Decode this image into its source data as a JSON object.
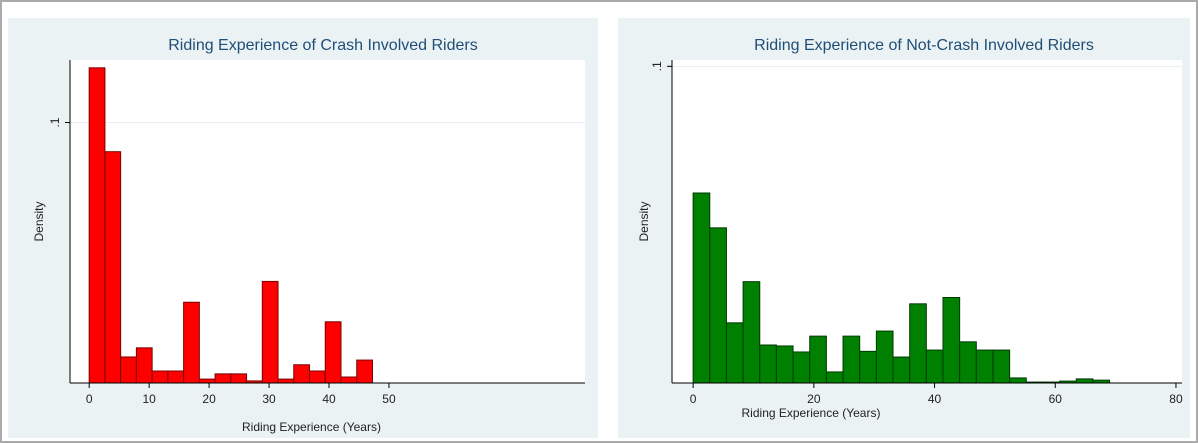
{
  "chart_data": [
    {
      "type": "histogram",
      "title": "Riding Experience of Crash Involved Riders",
      "x_label": "Riding Experience (Years)",
      "y_label": "Density",
      "bins": [
        0,
        2.625,
        5.25,
        7.875,
        10.5,
        13.125,
        15.75,
        18.375,
        21,
        23.625,
        26.25,
        28.875,
        31.5,
        34.125,
        36.75,
        39.375,
        42,
        44.625,
        47.25
      ],
      "values": [
        0.121,
        0.0888,
        0.01,
        0.0135,
        0.0046,
        0.0046,
        0.031,
        0.0015,
        0.0035,
        0.0035,
        0.0008,
        0.039,
        0.0015,
        0.007,
        0.0046,
        0.0235,
        0.0023,
        0.0088
      ],
      "color": "#ff0000",
      "edge_color": "#7a0000",
      "xlim": [
        -3.2,
        82.7
      ],
      "xticks": [
        0,
        10,
        20,
        30,
        40,
        50
      ],
      "ylim": [
        0,
        0.124
      ],
      "yticks": [
        {
          "value": 0.1,
          "label": ".1"
        }
      ],
      "grid": true
    },
    {
      "type": "histogram",
      "title": "Riding Experience of Not-Crash Involved Riders",
      "x_label": "Riding Experience (Years)",
      "y_label": "Density",
      "bins": [
        0,
        2.76,
        5.52,
        8.28,
        11.04,
        13.8,
        16.56,
        19.32,
        22.08,
        24.84,
        27.6,
        30.36,
        33.12,
        35.88,
        38.64,
        41.4,
        44.16,
        46.92,
        49.68,
        52.44,
        55.2,
        57.96,
        60.72,
        63.48,
        66.24,
        69
      ],
      "values": [
        0.06,
        0.049,
        0.019,
        0.032,
        0.012,
        0.0117,
        0.0098,
        0.0148,
        0.0035,
        0.0148,
        0.01,
        0.0164,
        0.0082,
        0.025,
        0.0104,
        0.027,
        0.013,
        0.0104,
        0.0104,
        0.0016,
        0.0003,
        0.0003,
        0.0006,
        0.0013,
        0.0009
      ],
      "color": "#008000",
      "edge_color": "#003a00",
      "xlim": [
        -3.5,
        81
      ],
      "xticks": [
        0,
        20,
        40,
        60,
        80
      ],
      "ylim": [
        0,
        0.102
      ],
      "yticks": [
        {
          "value": 0.1,
          "label": ".1"
        }
      ],
      "grid": true
    }
  ]
}
